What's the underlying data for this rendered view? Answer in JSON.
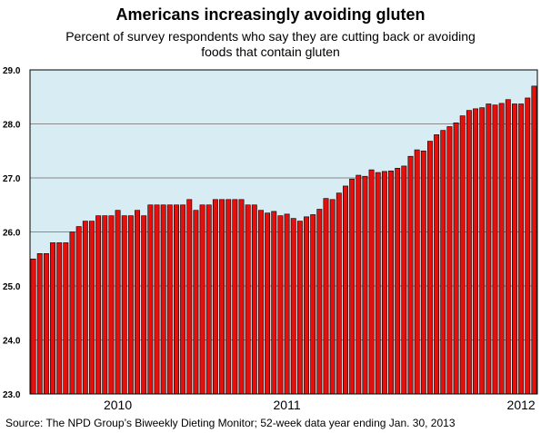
{
  "title": "Americans increasingly avoiding gluten",
  "subtitle_line1": "Percent of survey respondents who say they are cutting back or avoiding",
  "subtitle_line2": "foods that contain gluten",
  "source": "Source: The NPD Group’s Biweekly Dieting Monitor; 52-week data year ending Jan. 30, 2013",
  "colors": {
    "plot_background": "#d8ecf3",
    "bar_fill": "#e4100e",
    "bar_stroke": "#000000",
    "gridline": "#8a8a8a"
  },
  "chart_data": {
    "type": "bar",
    "title": "Americans increasingly avoiding gluten",
    "subtitle": "Percent of survey respondents who say they are cutting back or avoiding foods that contain gluten",
    "xlabel": "",
    "ylabel": "",
    "ylim": [
      23.0,
      29.0
    ],
    "yticks": [
      "23.0",
      "24.0",
      "25.0",
      "26.0",
      "27.0",
      "28.0",
      "29.0"
    ],
    "xtick_labels": [
      {
        "label": "2010",
        "index": 13
      },
      {
        "label": "2011",
        "index": 39
      },
      {
        "label": "2012",
        "index": 75
      }
    ],
    "grid": true,
    "legend": "none",
    "series": [
      {
        "values": [
          25.5,
          25.6,
          25.6,
          25.8,
          25.8,
          25.8,
          26.0,
          26.1,
          26.2,
          26.2,
          26.3,
          26.3,
          26.3,
          26.4,
          26.3,
          26.3,
          26.4,
          26.3,
          26.5,
          26.5,
          26.5,
          26.5,
          26.5,
          26.5,
          26.6,
          26.4,
          26.5,
          26.5,
          26.6,
          26.6,
          26.6,
          26.6,
          26.6,
          26.5,
          26.5,
          26.4,
          26.35,
          26.38,
          26.3,
          26.33,
          26.25,
          26.2,
          26.28,
          26.32,
          26.42,
          26.62,
          26.6,
          26.72,
          26.85,
          26.98,
          27.05,
          27.03,
          27.15,
          27.1,
          27.12,
          27.13,
          27.18,
          27.22,
          27.4,
          27.52,
          27.5,
          27.68,
          27.8,
          27.88,
          27.95,
          28.02,
          28.15,
          28.25,
          28.28,
          28.3,
          28.37,
          28.35,
          28.38,
          28.45,
          28.37,
          28.37,
          28.48,
          28.7
        ]
      }
    ]
  }
}
